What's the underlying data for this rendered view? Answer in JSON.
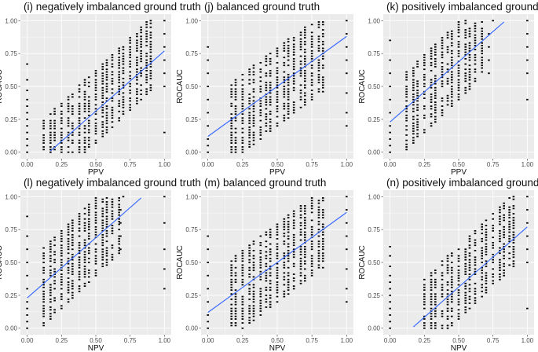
{
  "figure": {
    "background": "#ffffff",
    "panel_background": "#ebebeb",
    "grid_major": "#ffffff",
    "point_color": "#000000",
    "fit_line_color": "#3366ff"
  },
  "chart_data": [
    {
      "type": "scatter",
      "title": "(i) negatively imbalanced ground truth",
      "xlabel": "PPV",
      "ylabel": "ROCAUC",
      "xlim": [
        0,
        1
      ],
      "ylim": [
        0,
        1
      ],
      "xticks": [
        "0.00",
        "0.25",
        "0.50",
        "0.75",
        "1.00"
      ],
      "yticks": [
        "0.00",
        "0.25",
        "0.50",
        "0.75",
        "1.00"
      ],
      "grid": true,
      "fit_line": {
        "x": [
          0.17,
          1.0
        ],
        "y": [
          0.01,
          0.77
        ]
      },
      "cloud": {
        "xs": [
          0.12,
          0.17,
          0.2,
          0.25,
          0.3,
          0.33,
          0.38,
          0.42,
          0.45,
          0.5,
          0.55,
          0.58,
          0.62,
          0.67,
          0.7,
          0.75,
          0.8,
          0.83,
          0.87,
          0.9
        ],
        "center_slope": 1.0,
        "center_intercept": -0.15,
        "spread": 0.28,
        "extra": [
          [
            0,
            0
          ],
          [
            0,
            0.05
          ],
          [
            0,
            0.1
          ],
          [
            0,
            0.15
          ],
          [
            0,
            0.2
          ],
          [
            0,
            0.25
          ],
          [
            0,
            0.3
          ],
          [
            0,
            0.35
          ],
          [
            0,
            0.4
          ],
          [
            0,
            0.47
          ],
          [
            0,
            0.55
          ],
          [
            0,
            0.67
          ],
          [
            1,
            0.15
          ],
          [
            1,
            0.5
          ],
          [
            1,
            0.6
          ],
          [
            1,
            0.7
          ],
          [
            1,
            0.8
          ],
          [
            1,
            0.9
          ],
          [
            1,
            1.0
          ]
        ]
      }
    },
    {
      "type": "scatter",
      "title": "(j) balanced ground truth",
      "xlabel": "PPV",
      "ylabel": "ROCAUC",
      "xlim": [
        0,
        1
      ],
      "ylim": [
        0,
        1
      ],
      "xticks": [
        "0.00",
        "0.25",
        "0.50",
        "0.75",
        "1.00"
      ],
      "yticks": [
        "0.00",
        "0.25",
        "0.50",
        "0.75",
        "1.00"
      ],
      "grid": true,
      "fit_line": {
        "x": [
          0.0,
          1.0
        ],
        "y": [
          0.12,
          0.88
        ]
      },
      "cloud": {
        "xs": [
          0.17,
          0.2,
          0.25,
          0.3,
          0.33,
          0.38,
          0.42,
          0.45,
          0.5,
          0.55,
          0.58,
          0.62,
          0.67,
          0.7,
          0.75,
          0.8,
          0.83
        ],
        "center_slope": 0.8,
        "center_intercept": 0.1,
        "spread": 0.3,
        "extra": [
          [
            0,
            0
          ],
          [
            0,
            0.05
          ],
          [
            0,
            0.1
          ],
          [
            0,
            0.2
          ],
          [
            0,
            0.3
          ],
          [
            0,
            0.4
          ],
          [
            0,
            0.5
          ],
          [
            0,
            0.6
          ],
          [
            0,
            0.7
          ],
          [
            0,
            0.8
          ],
          [
            1,
            0.2
          ],
          [
            1,
            0.3
          ],
          [
            1,
            0.45
          ],
          [
            1,
            0.6
          ],
          [
            1,
            0.7
          ],
          [
            1,
            0.8
          ],
          [
            1,
            0.9
          ],
          [
            1,
            1.0
          ]
        ]
      }
    },
    {
      "type": "scatter",
      "title": "(k) positively imbalanced ground truth",
      "xlabel": "PPV",
      "ylabel": "ROCAUC",
      "xlim": [
        0,
        1
      ],
      "ylim": [
        0,
        1
      ],
      "xticks": [
        "0.00",
        "0.25",
        "0.50",
        "0.75",
        "1.00"
      ],
      "yticks": [
        "0.00",
        "0.25",
        "0.50",
        "0.75",
        "1.00"
      ],
      "grid": true,
      "fit_line": {
        "x": [
          0.0,
          0.83
        ],
        "y": [
          0.23,
          0.99
        ]
      },
      "cloud": {
        "xs": [
          0.12,
          0.17,
          0.2,
          0.25,
          0.3,
          0.33,
          0.38,
          0.42,
          0.45,
          0.5,
          0.55,
          0.58,
          0.62,
          0.67
        ],
        "center_slope": 1.0,
        "center_intercept": 0.2,
        "spread": 0.3,
        "extra": [
          [
            0,
            0
          ],
          [
            0,
            0.05
          ],
          [
            0,
            0.1
          ],
          [
            0,
            0.15
          ],
          [
            0,
            0.2
          ],
          [
            0,
            0.3
          ],
          [
            0,
            0.4
          ],
          [
            0,
            0.5
          ],
          [
            0,
            0.6
          ],
          [
            0,
            0.7
          ],
          [
            0,
            0.85
          ],
          [
            0.72,
            0.6
          ],
          [
            0.72,
            0.7
          ],
          [
            0.72,
            0.8
          ],
          [
            0.72,
            0.9
          ],
          [
            0.75,
            1.0
          ],
          [
            1,
            0.4
          ],
          [
            1,
            0.6
          ],
          [
            1,
            0.7
          ],
          [
            1,
            0.8
          ],
          [
            1,
            0.9
          ],
          [
            1,
            1.0
          ]
        ]
      }
    },
    {
      "type": "scatter",
      "title": "(l) negatively imbalanced ground truth",
      "xlabel": "NPV",
      "ylabel": "ROCAUC",
      "xlim": [
        0,
        1
      ],
      "ylim": [
        0,
        1
      ],
      "xticks": [
        "0.00",
        "0.25",
        "0.50",
        "0.75",
        "1.00"
      ],
      "yticks": [
        "0.00",
        "0.25",
        "0.50",
        "0.75",
        "1.00"
      ],
      "grid": true,
      "fit_line": {
        "x": [
          0.0,
          0.83
        ],
        "y": [
          0.23,
          0.99
        ]
      },
      "cloud": {
        "xs": [
          0.12,
          0.17,
          0.2,
          0.25,
          0.3,
          0.33,
          0.38,
          0.42,
          0.45,
          0.5,
          0.55,
          0.58,
          0.62,
          0.67
        ],
        "center_slope": 1.0,
        "center_intercept": 0.2,
        "spread": 0.3,
        "extra": [
          [
            0,
            0
          ],
          [
            0,
            0.05
          ],
          [
            0,
            0.1
          ],
          [
            0,
            0.15
          ],
          [
            0,
            0.2
          ],
          [
            0,
            0.3
          ],
          [
            0,
            0.4
          ],
          [
            0,
            0.5
          ],
          [
            0,
            0.6
          ],
          [
            0,
            0.7
          ],
          [
            0,
            0.85
          ],
          [
            0.68,
            0.6
          ],
          [
            0.68,
            0.7
          ],
          [
            0.68,
            0.8
          ],
          [
            0.68,
            0.9
          ],
          [
            0.7,
            1.0
          ],
          [
            1,
            0.3
          ],
          [
            1,
            0.45
          ],
          [
            1,
            0.6
          ],
          [
            1,
            0.8
          ],
          [
            1,
            1.0
          ]
        ]
      }
    },
    {
      "type": "scatter",
      "title": "(m) balanced ground truth",
      "xlabel": "NPV",
      "ylabel": "ROCAUC",
      "xlim": [
        0,
        1
      ],
      "ylim": [
        0,
        1
      ],
      "xticks": [
        "0.00",
        "0.25",
        "0.50",
        "0.75",
        "1.00"
      ],
      "yticks": [
        "0.00",
        "0.25",
        "0.50",
        "0.75",
        "1.00"
      ],
      "grid": true,
      "fit_line": {
        "x": [
          0.0,
          1.0
        ],
        "y": [
          0.12,
          0.88
        ]
      },
      "cloud": {
        "xs": [
          0.17,
          0.2,
          0.25,
          0.3,
          0.33,
          0.38,
          0.42,
          0.45,
          0.5,
          0.55,
          0.58,
          0.62,
          0.67,
          0.7,
          0.75,
          0.8,
          0.83
        ],
        "center_slope": 0.8,
        "center_intercept": 0.1,
        "spread": 0.3,
        "extra": [
          [
            0,
            0
          ],
          [
            0,
            0.05
          ],
          [
            0,
            0.1
          ],
          [
            0,
            0.2
          ],
          [
            0,
            0.3
          ],
          [
            0,
            0.4
          ],
          [
            0,
            0.5
          ],
          [
            0,
            0.6
          ],
          [
            0,
            0.7
          ],
          [
            1,
            0.2
          ],
          [
            1,
            0.3
          ],
          [
            1,
            0.45
          ],
          [
            1,
            0.6
          ],
          [
            1,
            0.7
          ],
          [
            1,
            0.8
          ],
          [
            1,
            0.9
          ],
          [
            1,
            1.0
          ]
        ]
      }
    },
    {
      "type": "scatter",
      "title": "(n) positively imbalanced ground truth",
      "xlabel": "NPV",
      "ylabel": "ROCAUC",
      "xlim": [
        0,
        1
      ],
      "ylim": [
        0,
        1
      ],
      "xticks": [
        "0.00",
        "0.25",
        "0.50",
        "0.75",
        "1.00"
      ],
      "yticks": [
        "0.00",
        "0.25",
        "0.50",
        "0.75",
        "1.00"
      ],
      "grid": true,
      "fit_line": {
        "x": [
          0.17,
          1.0
        ],
        "y": [
          0.01,
          0.77
        ]
      },
      "cloud": {
        "xs": [
          0.25,
          0.3,
          0.33,
          0.38,
          0.42,
          0.45,
          0.5,
          0.55,
          0.58,
          0.62,
          0.67,
          0.7,
          0.75,
          0.8,
          0.83,
          0.87,
          0.9
        ],
        "center_slope": 1.0,
        "center_intercept": -0.15,
        "spread": 0.28,
        "extra": [
          [
            0,
            0
          ],
          [
            0,
            0.05
          ],
          [
            0,
            0.1
          ],
          [
            0,
            0.15
          ],
          [
            0,
            0.2
          ],
          [
            0,
            0.25
          ],
          [
            0,
            0.3
          ],
          [
            0,
            0.35
          ],
          [
            0,
            0.4
          ],
          [
            0,
            0.47
          ],
          [
            0,
            0.55
          ],
          [
            0,
            0.62
          ],
          [
            1,
            0.15
          ],
          [
            1,
            0.5
          ],
          [
            1,
            0.6
          ],
          [
            1,
            0.7
          ],
          [
            1,
            0.8
          ],
          [
            1,
            0.9
          ],
          [
            1,
            1.0
          ]
        ]
      }
    }
  ]
}
